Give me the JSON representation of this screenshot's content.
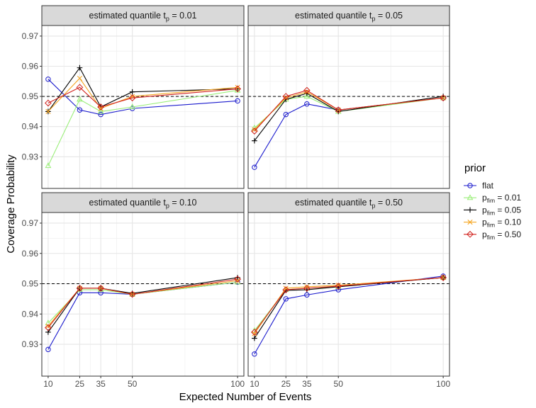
{
  "chart_data": {
    "type": "line",
    "xlabel": "Expected Number of Events",
    "ylabel": "Coverage Probability",
    "x_ticks": [
      10,
      25,
      35,
      50,
      100
    ],
    "y_ticks": [
      0.93,
      0.94,
      0.95,
      0.96,
      0.97
    ],
    "y_tick_labels": [
      "0.93",
      "0.94",
      "0.95",
      "0.96",
      "0.97"
    ],
    "xlim": [
      7,
      103
    ],
    "ylim": [
      0.9195,
      0.9735
    ],
    "reference_line": 0.95,
    "grid": true,
    "legend": {
      "title": "prior",
      "position": "right",
      "entries": [
        {
          "base": "flat",
          "sub": "",
          "suffix": "",
          "color": "#1a1acd",
          "marker": "circle"
        },
        {
          "base": "p",
          "sub": "fim",
          "suffix": " = 0.01",
          "color": "#99ee77",
          "marker": "triangle"
        },
        {
          "base": "p",
          "sub": "fim",
          "suffix": " = 0.05",
          "color": "#000000",
          "marker": "plus"
        },
        {
          "base": "p",
          "sub": "fim",
          "suffix": " = 0.10",
          "color": "#f5a623",
          "marker": "cross"
        },
        {
          "base": "p",
          "sub": "fim",
          "suffix": " = 0.50",
          "color": "#d0201b",
          "marker": "diamond"
        }
      ]
    },
    "panels": [
      {
        "title_base": "estimated quantile t",
        "title_sub": "p",
        "title_suffix": " = 0.01",
        "series": [
          {
            "x": [
              10,
              25,
              35,
              50,
              100
            ],
            "y": [
              0.9557,
              0.9455,
              0.944,
              0.946,
              0.9485
            ]
          },
          {
            "x": [
              10,
              25,
              35,
              50,
              100
            ],
            "y": [
              0.927,
              0.949,
              0.945,
              0.9465,
              0.952
            ]
          },
          {
            "x": [
              10,
              25,
              35,
              50,
              100
            ],
            "y": [
              0.945,
              0.9595,
              0.9465,
              0.9515,
              0.9525
            ]
          },
          {
            "x": [
              10,
              25,
              35,
              50,
              100
            ],
            "y": [
              0.945,
              0.956,
              0.946,
              0.95,
              0.953
            ]
          },
          {
            "x": [
              10,
              25,
              35,
              50,
              100
            ],
            "y": [
              0.9478,
              0.953,
              0.9465,
              0.9495,
              0.9525
            ]
          }
        ]
      },
      {
        "title_base": "estimated quantile t",
        "title_sub": "p",
        "title_suffix": " = 0.05",
        "series": [
          {
            "x": [
              10,
              25,
              35,
              50,
              100
            ],
            "y": [
              0.9265,
              0.944,
              0.9475,
              0.9455,
              0.9495
            ]
          },
          {
            "x": [
              10,
              25,
              35,
              50,
              100
            ],
            "y": [
              0.9395,
              0.949,
              0.95,
              0.945,
              0.9495
            ]
          },
          {
            "x": [
              10,
              25,
              35,
              50,
              100
            ],
            "y": [
              0.9353,
              0.949,
              0.951,
              0.945,
              0.95
            ]
          },
          {
            "x": [
              10,
              25,
              35,
              50,
              100
            ],
            "y": [
              0.939,
              0.9495,
              0.9515,
              0.9455,
              0.9495
            ]
          },
          {
            "x": [
              10,
              25,
              35,
              50,
              100
            ],
            "y": [
              0.9385,
              0.95,
              0.952,
              0.9455,
              0.9495
            ]
          }
        ]
      },
      {
        "title_base": "estimated quantile t",
        "title_sub": "p",
        "title_suffix": " = 0.10",
        "series": [
          {
            "x": [
              10,
              25,
              35,
              50,
              100
            ],
            "y": [
              0.9283,
              0.947,
              0.947,
              0.9465,
              0.9505
            ]
          },
          {
            "x": [
              10,
              25,
              35,
              50,
              100
            ],
            "y": [
              0.937,
              0.948,
              0.948,
              0.9465,
              0.9505
            ]
          },
          {
            "x": [
              10,
              25,
              35,
              50,
              100
            ],
            "y": [
              0.934,
              0.9485,
              0.9485,
              0.9468,
              0.952
            ]
          },
          {
            "x": [
              10,
              25,
              35,
              50,
              100
            ],
            "y": [
              0.936,
              0.9485,
              0.9485,
              0.9465,
              0.951
            ]
          },
          {
            "x": [
              10,
              25,
              35,
              50,
              100
            ],
            "y": [
              0.9355,
              0.9485,
              0.9485,
              0.9465,
              0.9515
            ]
          }
        ]
      },
      {
        "title_base": "estimated quantile t",
        "title_sub": "p",
        "title_suffix": " = 0.50",
        "series": [
          {
            "x": [
              10,
              25,
              35,
              50,
              100
            ],
            "y": [
              0.9268,
              0.945,
              0.9463,
              0.948,
              0.9525
            ]
          },
          {
            "x": [
              10,
              25,
              35,
              50,
              100
            ],
            "y": [
              0.9345,
              0.948,
              0.9485,
              0.949,
              0.952
            ]
          },
          {
            "x": [
              10,
              25,
              35,
              50,
              100
            ],
            "y": [
              0.932,
              0.9478,
              0.948,
              0.949,
              0.952
            ]
          },
          {
            "x": [
              10,
              25,
              35,
              50,
              100
            ],
            "y": [
              0.9335,
              0.9485,
              0.949,
              0.9495,
              0.952
            ]
          },
          {
            "x": [
              10,
              25,
              35,
              50,
              100
            ],
            "y": [
              0.934,
              0.948,
              0.9485,
              0.9492,
              0.952
            ]
          }
        ]
      }
    ]
  }
}
